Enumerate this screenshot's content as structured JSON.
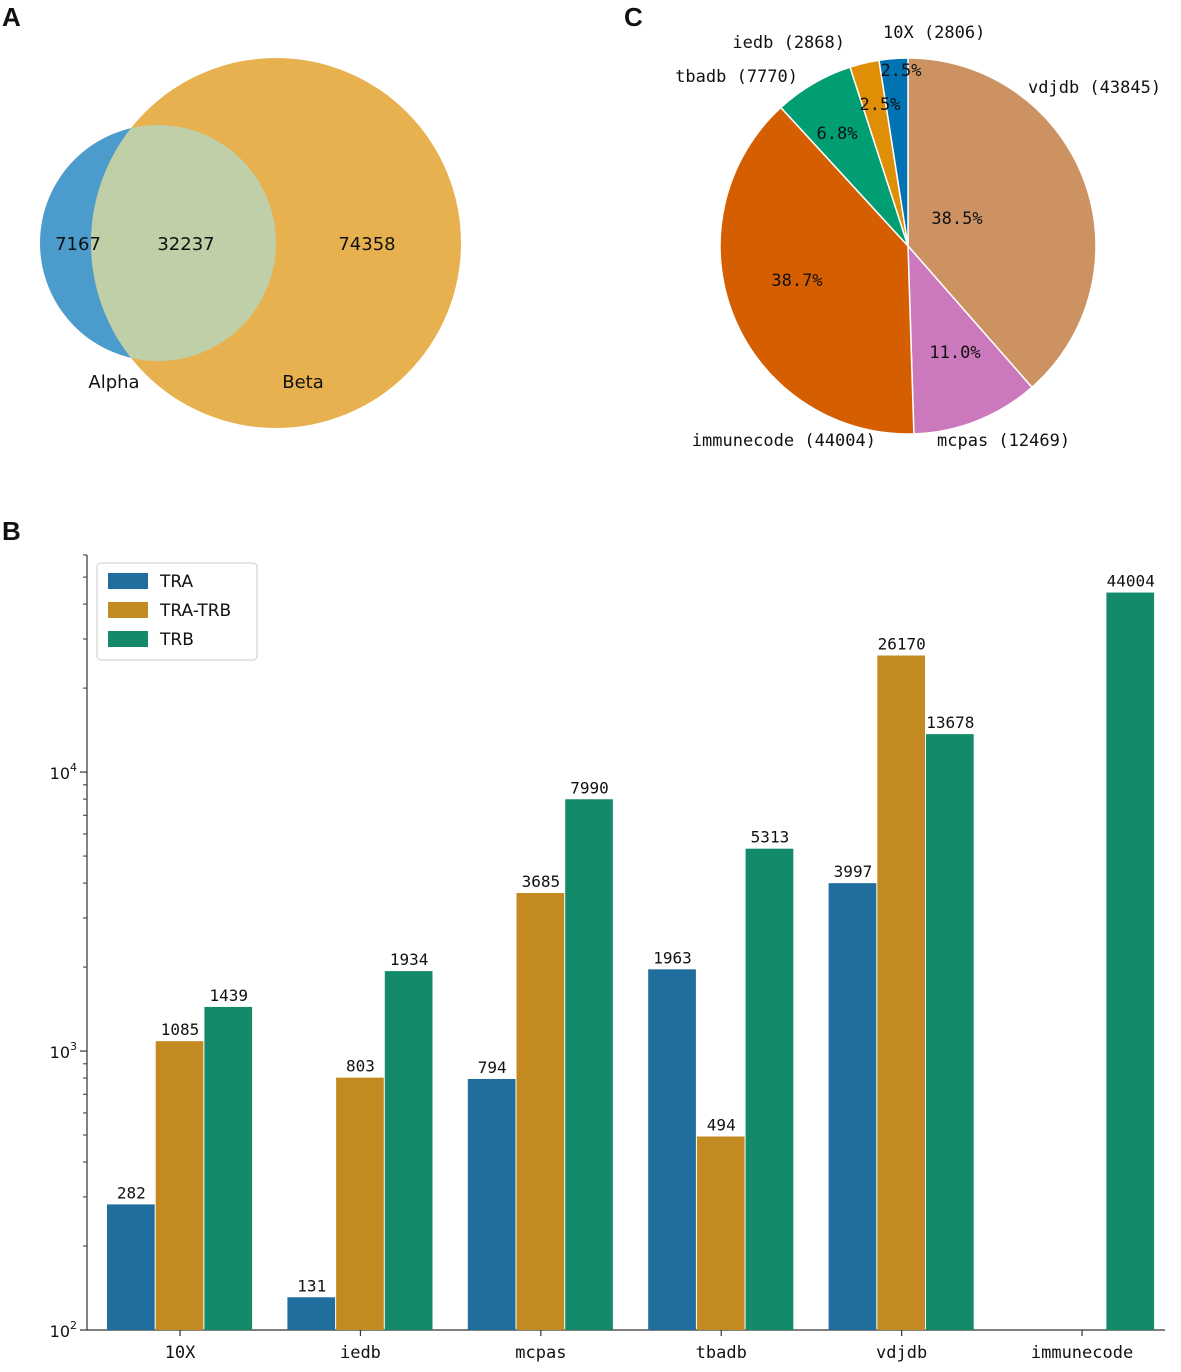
{
  "panels": {
    "a": "A",
    "b": "B",
    "c": "C"
  },
  "venn": {
    "alpha_only": "7167",
    "intersection": "32237",
    "beta_only": "74358",
    "alpha_label": "Alpha",
    "beta_label": "Beta",
    "colors": {
      "alpha": "#4b9ccc",
      "beta": "#e8b14f",
      "overlap": "#bfcfa8"
    }
  },
  "chart_data": [
    {
      "type": "pie",
      "panel": "C",
      "title": "",
      "slices": [
        {
          "name": "vdjdb",
          "label": "vdjdb (43845)",
          "value": 43845,
          "pct": "38.5%",
          "color": "#cc9261"
        },
        {
          "name": "mcpas",
          "label": "mcpas (12469)",
          "value": 12469,
          "pct": "11.0%",
          "color": "#cc78bc"
        },
        {
          "name": "immunecode",
          "label": "immunecode (44004)",
          "value": 44004,
          "pct": "38.7%",
          "color": "#d55e00"
        },
        {
          "name": "tbadb",
          "label": "tbadb (7770)",
          "value": 7770,
          "pct": "6.8%",
          "color": "#029e73"
        },
        {
          "name": "iedb",
          "label": "iedb (2868)",
          "value": 2868,
          "pct": "2.5%",
          "color": "#de8f05"
        },
        {
          "name": "10X",
          "label": "10X (2806)",
          "value": 2806,
          "pct": "2.5%",
          "color": "#0173b2"
        }
      ]
    },
    {
      "type": "bar",
      "panel": "B",
      "title": "",
      "xlabel": "",
      "ylabel": "",
      "yscale": "log",
      "ylim": [
        100,
        60000
      ],
      "yticks": [
        {
          "value": 100,
          "base": "10",
          "exp": "2"
        },
        {
          "value": 1000,
          "base": "10",
          "exp": "3"
        },
        {
          "value": 10000,
          "base": "10",
          "exp": "4"
        }
      ],
      "categories": [
        "10X",
        "iedb",
        "mcpas",
        "tbadb",
        "vdjdb",
        "immunecode"
      ],
      "legend_position": "top-left",
      "series": [
        {
          "name": "TRA",
          "color": "#1f6e9e",
          "values": [
            282,
            131,
            794,
            1963,
            3997,
            null
          ]
        },
        {
          "name": "TRA-TRB",
          "color": "#c48a22",
          "values": [
            1085,
            803,
            3685,
            494,
            26170,
            null
          ]
        },
        {
          "name": "TRB",
          "color": "#138a6a",
          "values": [
            1439,
            1934,
            7990,
            5313,
            13678,
            44004
          ]
        }
      ]
    }
  ]
}
